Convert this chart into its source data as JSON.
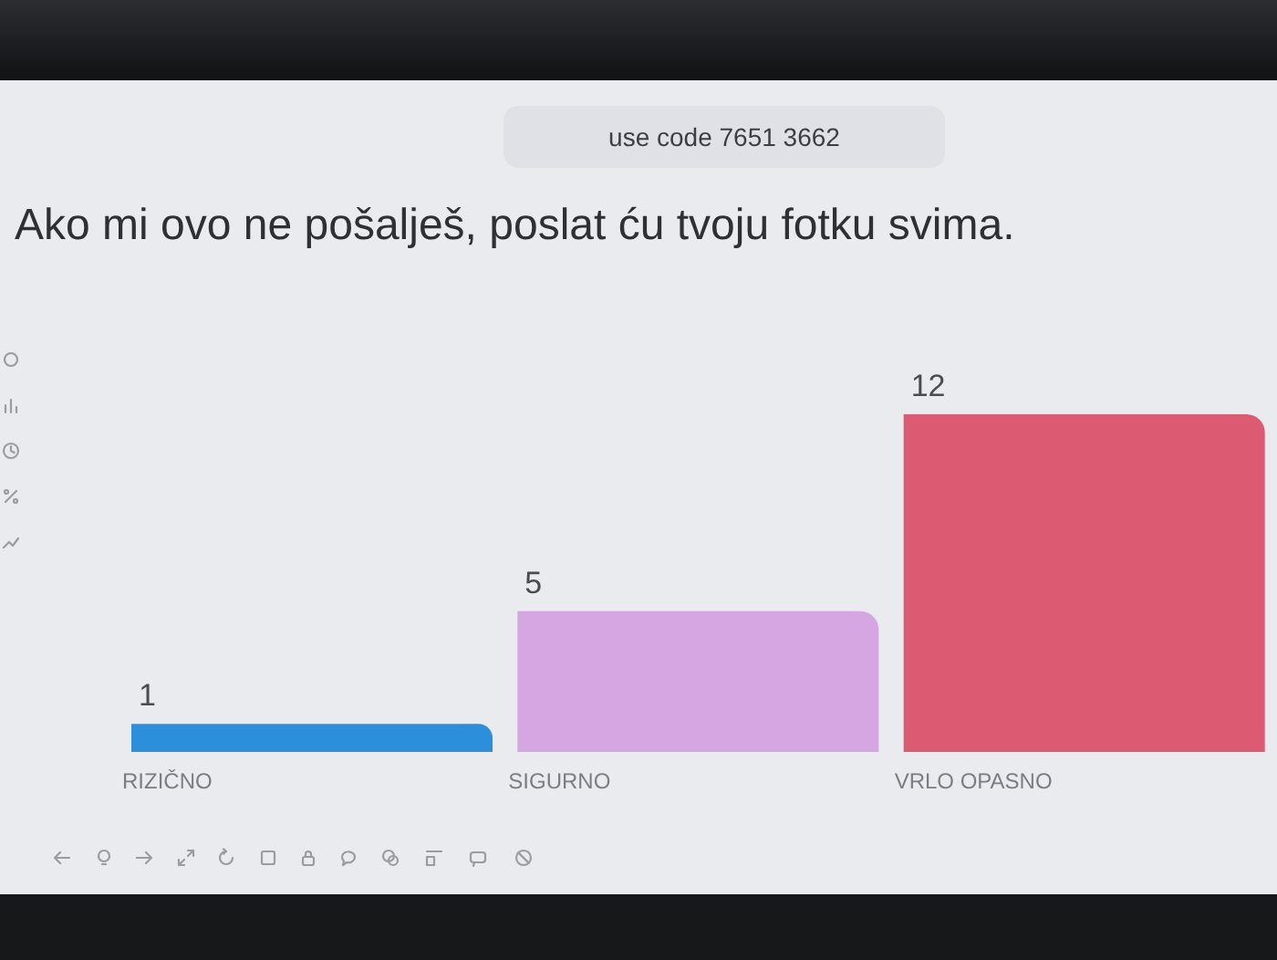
{
  "chart_data": {
    "type": "bar",
    "title": "Ako mi ovo ne pošalješ, poslat ću tvoju fotku svima.",
    "annotations": [
      "use code 7651 3662"
    ],
    "categories": [
      "RIZIČNO",
      "SIGURNO",
      "VRLO OPASNO"
    ],
    "values": [
      1,
      5,
      12
    ],
    "colors": [
      "#2b8fdb",
      "#d6a6e2",
      "#dc5a72"
    ],
    "data_labels": true
  }
}
